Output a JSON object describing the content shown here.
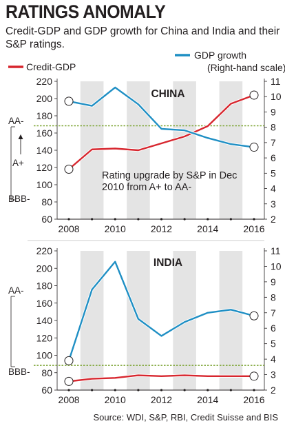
{
  "title": "RATINGS ANOMALY",
  "subtitle": "Credit-GDP and GDP growth for China and India and their S&P ratings.",
  "source": "Source: WDI, S&P, RBI, Credit Suisse and BIS",
  "colors": {
    "credit": "#d7262e",
    "gdp": "#1f8fc4",
    "threshold": "#7aa330",
    "band": "#e4e4e4"
  },
  "legend": {
    "credit": "Credit-GDP",
    "gdp": "GDP growth",
    "gdp_note": "(Right-hand scale)"
  },
  "chart_data": [
    {
      "type": "line",
      "title": "CHINA",
      "x": [
        2008,
        2009,
        2010,
        2011,
        2012,
        2013,
        2014,
        2015,
        2016
      ],
      "xticks": [
        "2008",
        "2010",
        "2012",
        "2014",
        "2016"
      ],
      "left_ylim": [
        60,
        220
      ],
      "left_yticks": [
        60,
        80,
        100,
        120,
        140,
        160,
        180,
        200,
        220
      ],
      "right_ylim": [
        2,
        11
      ],
      "right_yticks": [
        2,
        3,
        4,
        5,
        6,
        7,
        8,
        9,
        10,
        11
      ],
      "series": [
        {
          "name": "Credit-GDP",
          "axis": "left",
          "values": [
            118,
            141,
            142,
            140,
            148,
            156,
            168,
            194,
            204
          ]
        },
        {
          "name": "GDP growth",
          "axis": "right",
          "values": [
            9.7,
            9.4,
            10.6,
            9.5,
            7.9,
            7.8,
            7.3,
            6.9,
            6.7
          ]
        }
      ],
      "threshold_right": 8.1,
      "rating_labels": [
        "AA-",
        "A+",
        "BBB-"
      ],
      "annotation": "Rating upgrade by S&P in Dec 2010 from A+ to AA-"
    },
    {
      "type": "line",
      "title": "INDIA",
      "x": [
        2008,
        2009,
        2010,
        2011,
        2012,
        2013,
        2014,
        2015,
        2016
      ],
      "xticks": [
        "2008",
        "2010",
        "2012",
        "2014",
        "2016"
      ],
      "left_ylim": [
        60,
        220
      ],
      "left_yticks": [
        60,
        80,
        100,
        120,
        140,
        160,
        180,
        200,
        220
      ],
      "right_ylim": [
        2,
        11
      ],
      "right_yticks": [
        2,
        3,
        4,
        5,
        6,
        7,
        8,
        9,
        10,
        11
      ],
      "series": [
        {
          "name": "Credit-GDP",
          "axis": "left",
          "values": [
            70,
            73,
            74,
            77,
            76,
            77,
            76,
            76,
            76
          ]
        },
        {
          "name": "GDP growth",
          "axis": "right",
          "values": [
            3.9,
            8.5,
            10.3,
            6.6,
            5.5,
            6.4,
            7.0,
            7.2,
            6.8
          ]
        }
      ],
      "threshold_right": 3.6,
      "rating_labels": [
        "AA-",
        "BBB-"
      ]
    }
  ]
}
